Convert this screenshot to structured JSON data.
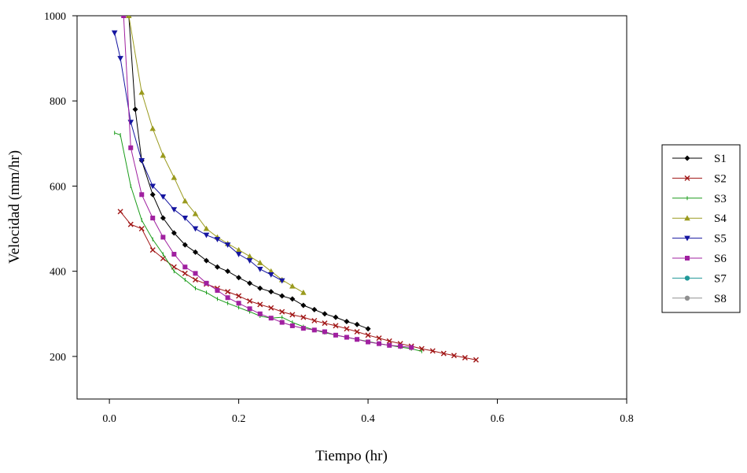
{
  "chart_data": {
    "type": "line",
    "title": "",
    "xlabel": "Tiempo (hr)",
    "ylabel": "Velocidad (mm/hr)",
    "xlim": [
      -0.05,
      0.8
    ],
    "ylim": [
      100,
      1000
    ],
    "xticks": [
      0.0,
      0.2,
      0.4,
      0.6,
      0.8
    ],
    "xtick_labels": [
      "0.0",
      "0.2",
      "0.4",
      "0.6",
      "0.8"
    ],
    "yticks": [
      200,
      400,
      600,
      800,
      1000
    ],
    "ytick_labels": [
      "200",
      "400",
      "600",
      "800",
      "1000"
    ],
    "grid": false,
    "legend_position": "right",
    "series": [
      {
        "name": "S1",
        "color": "#000000",
        "marker": "diamond",
        "x": [
          0.03,
          0.04,
          0.05,
          0.067,
          0.083,
          0.1,
          0.117,
          0.133,
          0.15,
          0.167,
          0.183,
          0.2,
          0.217,
          0.233,
          0.25,
          0.267,
          0.283,
          0.3,
          0.317,
          0.333,
          0.35,
          0.367,
          0.383,
          0.4
        ],
        "y": [
          1000,
          780,
          660,
          580,
          525,
          490,
          462,
          445,
          425,
          410,
          400,
          385,
          372,
          360,
          352,
          342,
          335,
          320,
          310,
          300,
          292,
          282,
          275,
          265
        ]
      },
      {
        "name": "S2",
        "color": "#a01515",
        "marker": "x",
        "x": [
          0.017,
          0.033,
          0.05,
          0.067,
          0.083,
          0.1,
          0.117,
          0.133,
          0.15,
          0.167,
          0.183,
          0.2,
          0.217,
          0.233,
          0.25,
          0.267,
          0.283,
          0.3,
          0.317,
          0.333,
          0.35,
          0.367,
          0.383,
          0.4,
          0.417,
          0.433,
          0.45,
          0.467,
          0.483,
          0.5,
          0.517,
          0.533,
          0.55,
          0.567
        ],
        "y": [
          540,
          510,
          500,
          450,
          430,
          410,
          395,
          380,
          370,
          360,
          352,
          342,
          330,
          322,
          314,
          305,
          298,
          292,
          284,
          278,
          272,
          265,
          258,
          250,
          243,
          236,
          230,
          224,
          218,
          213,
          207,
          202,
          197,
          192
        ]
      },
      {
        "name": "S3",
        "color": "#1a9c1a",
        "marker": "tick",
        "x": [
          0.008,
          0.017,
          0.033,
          0.05,
          0.067,
          0.083,
          0.1,
          0.117,
          0.133,
          0.15,
          0.167,
          0.183,
          0.2,
          0.217,
          0.233,
          0.25,
          0.267,
          0.283,
          0.3,
          0.317,
          0.333,
          0.35,
          0.367,
          0.383,
          0.4,
          0.417,
          0.433,
          0.45,
          0.467,
          0.483
        ],
        "y": [
          725,
          720,
          600,
          520,
          475,
          440,
          400,
          380,
          360,
          350,
          335,
          325,
          315,
          305,
          295,
          290,
          292,
          280,
          270,
          262,
          256,
          250,
          245,
          240,
          235,
          230,
          226,
          222,
          218,
          212
        ]
      },
      {
        "name": "S4",
        "color": "#9a9a1e",
        "marker": "triangle-up",
        "x": [
          0.03,
          0.05,
          0.067,
          0.083,
          0.1,
          0.117,
          0.133,
          0.15,
          0.167,
          0.183,
          0.2,
          0.217,
          0.233,
          0.25,
          0.267,
          0.283,
          0.3
        ],
        "y": [
          1000,
          820,
          735,
          672,
          620,
          565,
          535,
          500,
          480,
          465,
          450,
          435,
          420,
          400,
          380,
          365,
          350
        ]
      },
      {
        "name": "S5",
        "color": "#1515a0",
        "marker": "triangle-down",
        "x": [
          0.008,
          0.017,
          0.033,
          0.05,
          0.067,
          0.083,
          0.1,
          0.117,
          0.133,
          0.15,
          0.167,
          0.183,
          0.2,
          0.217,
          0.233,
          0.25,
          0.267
        ],
        "y": [
          960,
          900,
          750,
          660,
          600,
          575,
          545,
          525,
          500,
          485,
          475,
          462,
          440,
          425,
          405,
          392,
          378
        ]
      },
      {
        "name": "S6",
        "color": "#a020a0",
        "marker": "square",
        "x": [
          0.022,
          0.033,
          0.05,
          0.067,
          0.083,
          0.1,
          0.117,
          0.133,
          0.15,
          0.167,
          0.183,
          0.2,
          0.217,
          0.233,
          0.25,
          0.267,
          0.283,
          0.3,
          0.317,
          0.333,
          0.35,
          0.367,
          0.383,
          0.4,
          0.417,
          0.433,
          0.45,
          0.467
        ],
        "y": [
          1000,
          690,
          580,
          525,
          480,
          440,
          410,
          395,
          372,
          355,
          338,
          325,
          312,
          300,
          290,
          280,
          272,
          266,
          262,
          258,
          250,
          245,
          240,
          234,
          230,
          226,
          224,
          221
        ]
      },
      {
        "name": "S7",
        "color": "#209898",
        "marker": "circle",
        "x": [],
        "y": []
      },
      {
        "name": "S8",
        "color": "#909090",
        "marker": "circle",
        "x": [],
        "y": []
      }
    ]
  }
}
